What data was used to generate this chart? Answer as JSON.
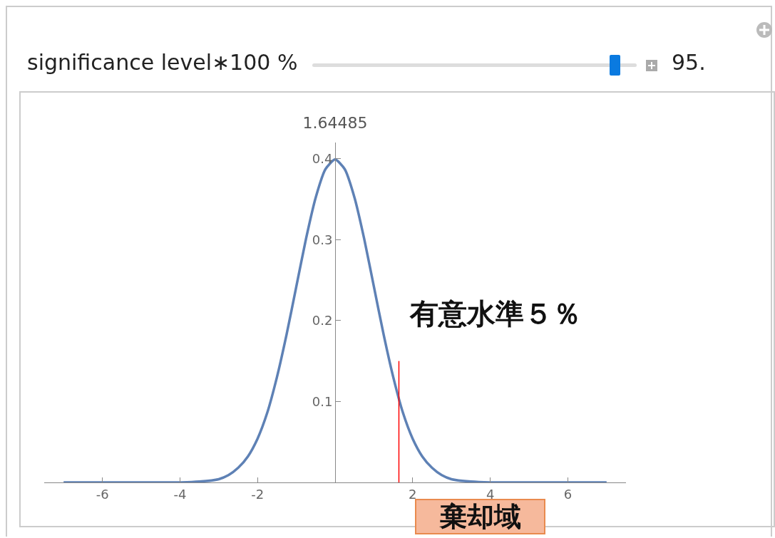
{
  "chart_data": {
    "type": "line",
    "title": "1.64485",
    "xlim": [
      -7.5,
      7.5
    ],
    "xticks": [
      -6,
      -4,
      -2,
      2,
      4,
      6
    ],
    "ylim": [
      0,
      0.42
    ],
    "yticks": [
      0.1,
      0.2,
      0.3,
      0.4
    ],
    "grid": false,
    "marker": "none",
    "line_style": "solid",
    "series": [
      {
        "color": "#5e81b5",
        "x": [
          -7,
          -6,
          -5,
          -4,
          -3.5,
          -3,
          -2.75,
          -2.5,
          -2.25,
          -2,
          -1.75,
          -1.5,
          -1.25,
          -1,
          -0.75,
          -0.5,
          -0.25,
          0,
          0.25,
          0.5,
          0.75,
          1,
          1.25,
          1.5,
          1.75,
          2,
          2.25,
          2.5,
          2.75,
          3,
          3.5,
          4,
          5,
          6,
          7
        ],
        "values": [
          0,
          0,
          0,
          0,
          0.001,
          0.004,
          0.009,
          0.018,
          0.032,
          0.054,
          0.086,
          0.13,
          0.183,
          0.242,
          0.301,
          0.352,
          0.387,
          0.399,
          0.387,
          0.352,
          0.301,
          0.242,
          0.183,
          0.13,
          0.086,
          0.054,
          0.032,
          0.018,
          0.009,
          0.004,
          0.001,
          0,
          0,
          0,
          0
        ]
      },
      {
        "color": "#ff0000",
        "x": [
          1.64485,
          1.64485
        ],
        "values": [
          0,
          0.15
        ]
      }
    ],
    "annotations": [
      "significance level∗100 %",
      "95.",
      "有意水準５％",
      "棄却域"
    ]
  }
}
